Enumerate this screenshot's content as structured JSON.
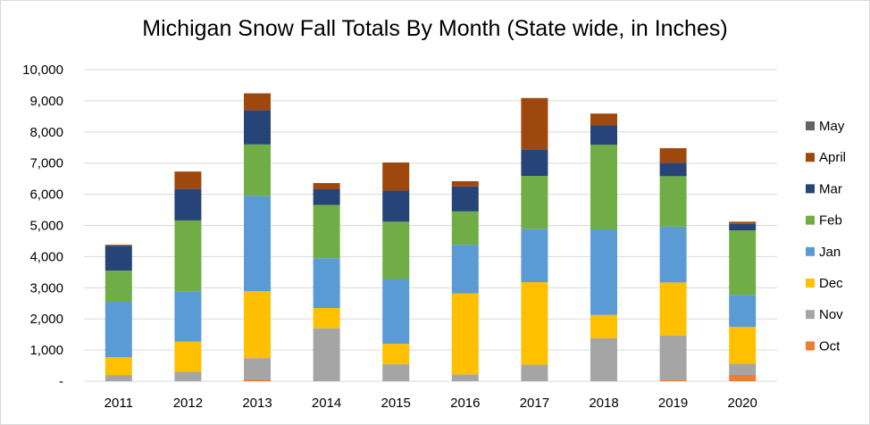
{
  "chart_data": {
    "type": "bar",
    "stacked": true,
    "title": "Michigan Snow Fall Totals By Month (State wide, in Inches)",
    "xlabel": "",
    "ylabel": "",
    "ylim": [
      0,
      10000
    ],
    "y_ticks": [
      {
        "value": 0,
        "label": "-"
      },
      {
        "value": 1000,
        "label": "1,000"
      },
      {
        "value": 2000,
        "label": "2,000"
      },
      {
        "value": 3000,
        "label": "3,000"
      },
      {
        "value": 4000,
        "label": "4,000"
      },
      {
        "value": 5000,
        "label": "5,000"
      },
      {
        "value": 6000,
        "label": "6,000"
      },
      {
        "value": 7000,
        "label": "7,000"
      },
      {
        "value": 8000,
        "label": "8,000"
      },
      {
        "value": 9000,
        "label": "9,000"
      },
      {
        "value": 10000,
        "label": "10,000"
      }
    ],
    "grid": true,
    "legend_position": "right",
    "categories": [
      "2011",
      "2012",
      "2013",
      "2014",
      "2015",
      "2016",
      "2017",
      "2018",
      "2019",
      "2020"
    ],
    "series": [
      {
        "name": "Oct",
        "color": "#ed7d31",
        "values": [
          0,
          0,
          60,
          0,
          0,
          0,
          0,
          0,
          50,
          200
        ]
      },
      {
        "name": "Nov",
        "color": "#a5a5a5",
        "values": [
          200,
          300,
          680,
          1700,
          550,
          220,
          530,
          1380,
          1420,
          360
        ]
      },
      {
        "name": "Dec",
        "color": "#ffc000",
        "values": [
          570,
          970,
          2150,
          650,
          650,
          2600,
          2650,
          750,
          1700,
          1180
        ]
      },
      {
        "name": "Jan",
        "color": "#5b9bd5",
        "values": [
          1780,
          1620,
          3060,
          1600,
          2080,
          1560,
          1700,
          2740,
          1790,
          1030
        ]
      },
      {
        "name": "Feb",
        "color": "#70ad47",
        "values": [
          1000,
          2270,
          1650,
          1710,
          1840,
          1070,
          1710,
          2720,
          1620,
          2070
        ]
      },
      {
        "name": "Mar",
        "color": "#264478",
        "values": [
          800,
          1010,
          1100,
          500,
          1000,
          800,
          850,
          620,
          430,
          210
        ]
      },
      {
        "name": "April",
        "color": "#9e480e",
        "values": [
          30,
          560,
          540,
          200,
          900,
          170,
          1650,
          380,
          470,
          70
        ]
      },
      {
        "name": "May",
        "color": "#636363",
        "values": [
          0,
          0,
          0,
          0,
          0,
          0,
          0,
          0,
          0,
          0
        ]
      }
    ],
    "legend_order": [
      "May",
      "April",
      "Mar",
      "Feb",
      "Jan",
      "Dec",
      "Nov",
      "Oct"
    ]
  }
}
